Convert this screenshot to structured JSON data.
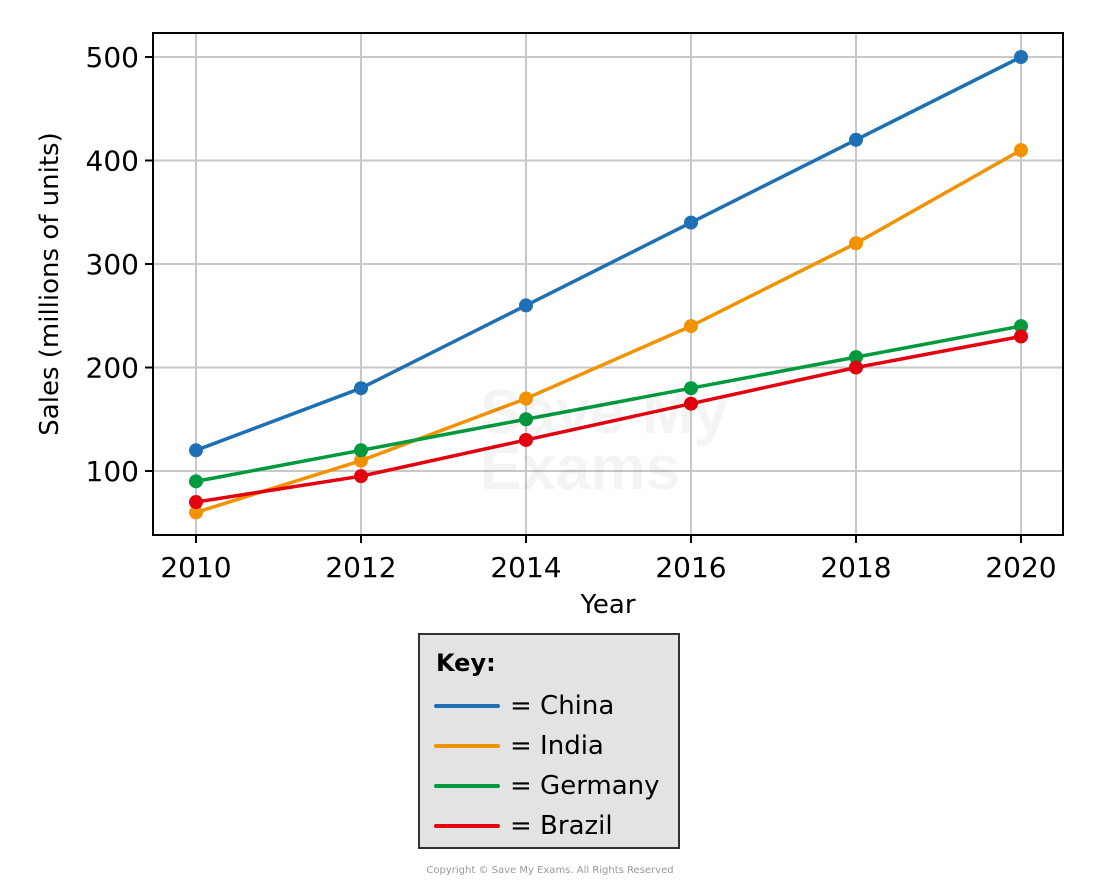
{
  "chart_data": {
    "type": "line",
    "title": "",
    "xlabel": "Year",
    "ylabel": "Sales (millions of units)",
    "x": [
      2010,
      2012,
      2014,
      2016,
      2018,
      2020
    ],
    "x_ticks": [
      "2010",
      "2012",
      "2014",
      "2016",
      "2018",
      "2020"
    ],
    "y_ticks": [
      "100",
      "200",
      "300",
      "400",
      "500"
    ],
    "ylim": [
      40,
      525
    ],
    "xlim": [
      2009.5,
      2020.5
    ],
    "grid": true,
    "legend_position": "below",
    "series": [
      {
        "name": "China",
        "color": "#1f6fb4",
        "values": [
          120,
          180,
          260,
          340,
          420,
          500
        ]
      },
      {
        "name": "India",
        "color": "#f39200",
        "values": [
          60,
          110,
          170,
          240,
          320,
          410
        ]
      },
      {
        "name": "Germany",
        "color": "#009a3e",
        "values": [
          90,
          120,
          150,
          180,
          210,
          240
        ]
      },
      {
        "name": "Brazil",
        "color": "#e3000f",
        "values": [
          70,
          95,
          130,
          165,
          200,
          230
        ]
      }
    ]
  },
  "legend": {
    "title": "Key:",
    "items": [
      {
        "label": "= China",
        "color": "#1f6fb4"
      },
      {
        "label": "= India",
        "color": "#f39200"
      },
      {
        "label": "= Germany",
        "color": "#009a3e"
      },
      {
        "label": "= Brazil",
        "color": "#e3000f"
      }
    ]
  },
  "watermark": "Save My Exams",
  "copyright": "Copyright © Save My Exams. All Rights Reserved"
}
